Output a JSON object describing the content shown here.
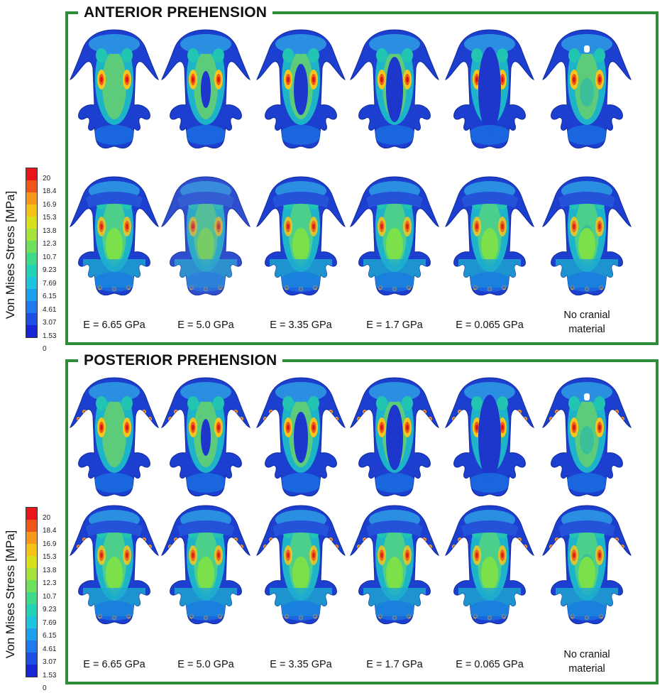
{
  "panels": [
    {
      "id": "anterior",
      "title": "ANTERIOR PREHENSION"
    },
    {
      "id": "posterior",
      "title": "POSTERIOR PREHENSION"
    }
  ],
  "labels": [
    "E = 6.65 GPa",
    "E = 5.0 GPa",
    "E = 3.35 GPa",
    "E = 1.7 GPa",
    "E = 0.065 GPa",
    "No cranial material"
  ],
  "legend": {
    "title": "Von Mises Stress [MPa]",
    "ticks": [
      "20",
      "18.4",
      "16.9",
      "15.3",
      "13.8",
      "12.3",
      "10.7",
      "9.23",
      "7.69",
      "6.15",
      "4.61",
      "3.07",
      "1.53",
      "0"
    ],
    "colors": [
      "#e8151c",
      "#f0551a",
      "#f9971a",
      "#f3c417",
      "#d8e01c",
      "#a3e33a",
      "#6fe05a",
      "#3fd98a",
      "#22d2b6",
      "#1cc4de",
      "#1da1ef",
      "#1f7af0",
      "#1e4ee6",
      "#1a25d6"
    ]
  }
}
